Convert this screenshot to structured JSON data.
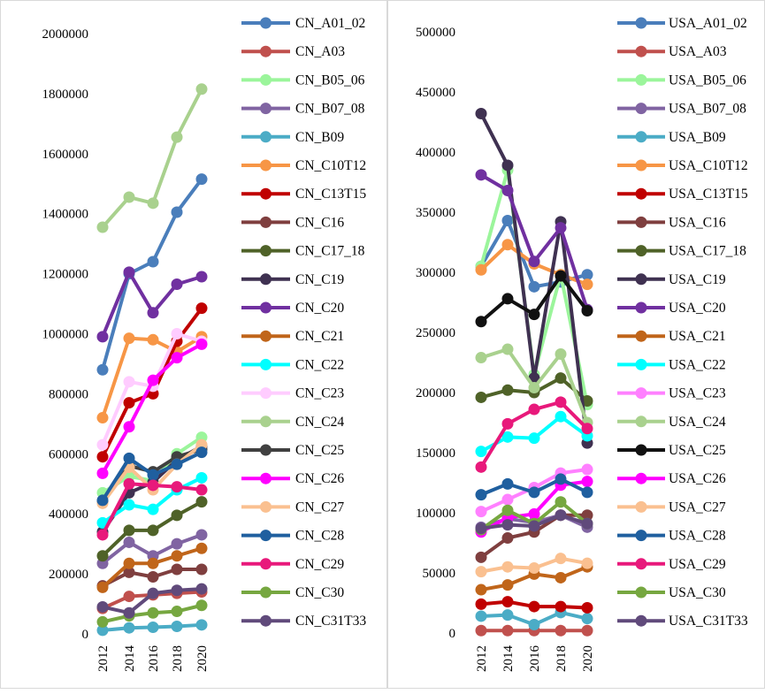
{
  "chart_data": [
    {
      "type": "line",
      "title": "",
      "xlabel": "",
      "ylabel": "",
      "categories": [
        "2012",
        "2014",
        "2016",
        "2018",
        "2020"
      ],
      "ylim": [
        0,
        2000000
      ],
      "yticks": [
        "0",
        "200000",
        "400000",
        "600000",
        "800000",
        "1000000",
        "1200000",
        "1400000",
        "1600000",
        "1800000",
        "2000000"
      ],
      "legend_position": "right",
      "grid": false,
      "series": [
        {
          "name": "CN_A01_02",
          "color": "#4a7ebb",
          "values": [
            880000,
            1200000,
            1240000,
            1405000,
            1515000
          ]
        },
        {
          "name": "CN_A03",
          "color": "#c0504d",
          "values": [
            85000,
            125000,
            130000,
            135000,
            140000
          ]
        },
        {
          "name": "CN_B05_06",
          "color": "#9bf59b",
          "values": [
            470000,
            525000,
            510000,
            600000,
            655000
          ]
        },
        {
          "name": "CN_B07_08",
          "color": "#8064a2",
          "values": [
            235000,
            305000,
            260000,
            300000,
            330000
          ]
        },
        {
          "name": "CN_B09",
          "color": "#4bacc6",
          "values": [
            12000,
            20000,
            22000,
            25000,
            30000
          ]
        },
        {
          "name": "CN_C10T12",
          "color": "#f79646",
          "values": [
            720000,
            985000,
            980000,
            940000,
            990000
          ]
        },
        {
          "name": "CN_C13T15",
          "color": "#c00000",
          "values": [
            590000,
            770000,
            800000,
            975000,
            1085000
          ]
        },
        {
          "name": "CN_C16",
          "color": "#7f3f3f",
          "values": [
            160000,
            205000,
            190000,
            215000,
            215000
          ]
        },
        {
          "name": "CN_C17_18",
          "color": "#4f6228",
          "values": [
            260000,
            345000,
            345000,
            395000,
            440000
          ]
        },
        {
          "name": "CN_C19",
          "color": "#3f3151",
          "values": [
            340000,
            470000,
            505000,
            580000,
            625000
          ]
        },
        {
          "name": "CN_C20",
          "color": "#7030a0",
          "values": [
            990000,
            1205000,
            1070000,
            1165000,
            1190000
          ]
        },
        {
          "name": "CN_C21",
          "color": "#c0651a",
          "values": [
            155000,
            235000,
            235000,
            260000,
            285000
          ]
        },
        {
          "name": "CN_C22",
          "color": "#00ffff",
          "values": [
            370000,
            430000,
            415000,
            480000,
            520000
          ]
        },
        {
          "name": "CN_C23",
          "color": "#ffccff",
          "values": [
            630000,
            840000,
            825000,
            1000000,
            975000
          ]
        },
        {
          "name": "CN_C24",
          "color": "#a9d18e",
          "values": [
            1355000,
            1455000,
            1435000,
            1655000,
            1815000
          ]
        },
        {
          "name": "CN_C25",
          "color": "#404040",
          "values": [
            440000,
            560000,
            540000,
            590000,
            615000
          ]
        },
        {
          "name": "CN_C26",
          "color": "#ff00ff",
          "values": [
            535000,
            690000,
            845000,
            920000,
            965000
          ]
        },
        {
          "name": "CN_C27",
          "color": "#fac090",
          "values": [
            435000,
            555000,
            480000,
            565000,
            630000
          ]
        },
        {
          "name": "CN_C28",
          "color": "#1f5f9f",
          "values": [
            445000,
            585000,
            530000,
            565000,
            605000
          ]
        },
        {
          "name": "CN_C29",
          "color": "#e8197b",
          "values": [
            330000,
            500000,
            495000,
            490000,
            480000
          ]
        },
        {
          "name": "CN_C30",
          "color": "#76a740",
          "values": [
            40000,
            60000,
            70000,
            75000,
            95000
          ]
        },
        {
          "name": "CN_C31T33",
          "color": "#604a7b",
          "values": [
            90000,
            70000,
            135000,
            145000,
            150000
          ]
        }
      ]
    },
    {
      "type": "line",
      "title": "",
      "xlabel": "",
      "ylabel": "",
      "categories": [
        "2012",
        "2014",
        "2016",
        "2018",
        "2020"
      ],
      "ylim": [
        0,
        500000
      ],
      "yticks": [
        "0",
        "50000",
        "100000",
        "150000",
        "200000",
        "250000",
        "300000",
        "350000",
        "400000",
        "450000",
        "500000"
      ],
      "legend_position": "right",
      "grid": false,
      "series": [
        {
          "name": "USA_A01_02",
          "color": "#4a7ebb",
          "values": [
            305000,
            343000,
            288000,
            292000,
            298000
          ]
        },
        {
          "name": "USA_A03",
          "color": "#c0504d",
          "values": [
            2000,
            2000,
            2000,
            2000,
            2000
          ]
        },
        {
          "name": "USA_B05_06",
          "color": "#9bf59b",
          "values": [
            305000,
            385000,
            215000,
            298000,
            190000
          ]
        },
        {
          "name": "USA_B07_08",
          "color": "#8064a2",
          "values": [
            88000,
            95000,
            92000,
            98000,
            88000
          ]
        },
        {
          "name": "USA_B09",
          "color": "#4bacc6",
          "values": [
            14000,
            15000,
            7000,
            17000,
            12000
          ]
        },
        {
          "name": "USA_C10T12",
          "color": "#f79646",
          "values": [
            302000,
            323000,
            307000,
            298000,
            290000
          ]
        },
        {
          "name": "USA_C13T15",
          "color": "#c00000",
          "values": [
            24000,
            26000,
            22000,
            22000,
            21000
          ]
        },
        {
          "name": "USA_C16",
          "color": "#7f3f3f",
          "values": [
            63000,
            79000,
            84000,
            98000,
            98000
          ]
        },
        {
          "name": "USA_C17_18",
          "color": "#4f6228",
          "values": [
            196000,
            202000,
            200000,
            212000,
            193000
          ]
        },
        {
          "name": "USA_C19",
          "color": "#3f3151",
          "values": [
            432000,
            389000,
            212000,
            342000,
            158000
          ]
        },
        {
          "name": "USA_C20",
          "color": "#7030a0",
          "values": [
            381000,
            368000,
            309000,
            337000,
            269000
          ]
        },
        {
          "name": "USA_C21",
          "color": "#c0651a",
          "values": [
            36000,
            40000,
            49000,
            46000,
            55000
          ]
        },
        {
          "name": "USA_C22",
          "color": "#00ffff",
          "values": [
            151000,
            163000,
            162000,
            180000,
            164000
          ]
        },
        {
          "name": "USA_C23",
          "color": "#ff80ff",
          "values": [
            101000,
            111000,
            121000,
            133000,
            136000
          ]
        },
        {
          "name": "USA_C24",
          "color": "#a9d18e",
          "values": [
            229000,
            236000,
            204000,
            232000,
            175000
          ]
        },
        {
          "name": "USA_C25",
          "color": "#111111",
          "values": [
            259000,
            278000,
            265000,
            297000,
            268000
          ]
        },
        {
          "name": "USA_C26",
          "color": "#ff00ff",
          "values": [
            84000,
            96000,
            99000,
            123000,
            126000
          ]
        },
        {
          "name": "USA_C27",
          "color": "#fac090",
          "values": [
            51000,
            55000,
            54000,
            62000,
            58000
          ]
        },
        {
          "name": "USA_C28",
          "color": "#1f5f9f",
          "values": [
            115000,
            124000,
            117000,
            128000,
            117000
          ]
        },
        {
          "name": "USA_C29",
          "color": "#e8197b",
          "values": [
            138000,
            174000,
            186000,
            192000,
            170000
          ]
        },
        {
          "name": "USA_C30",
          "color": "#76a740",
          "values": [
            86000,
            102000,
            91000,
            109000,
            91000
          ]
        },
        {
          "name": "USA_C31T33",
          "color": "#604a7b",
          "values": [
            87000,
            90000,
            89000,
            98000,
            91000
          ]
        }
      ]
    }
  ]
}
